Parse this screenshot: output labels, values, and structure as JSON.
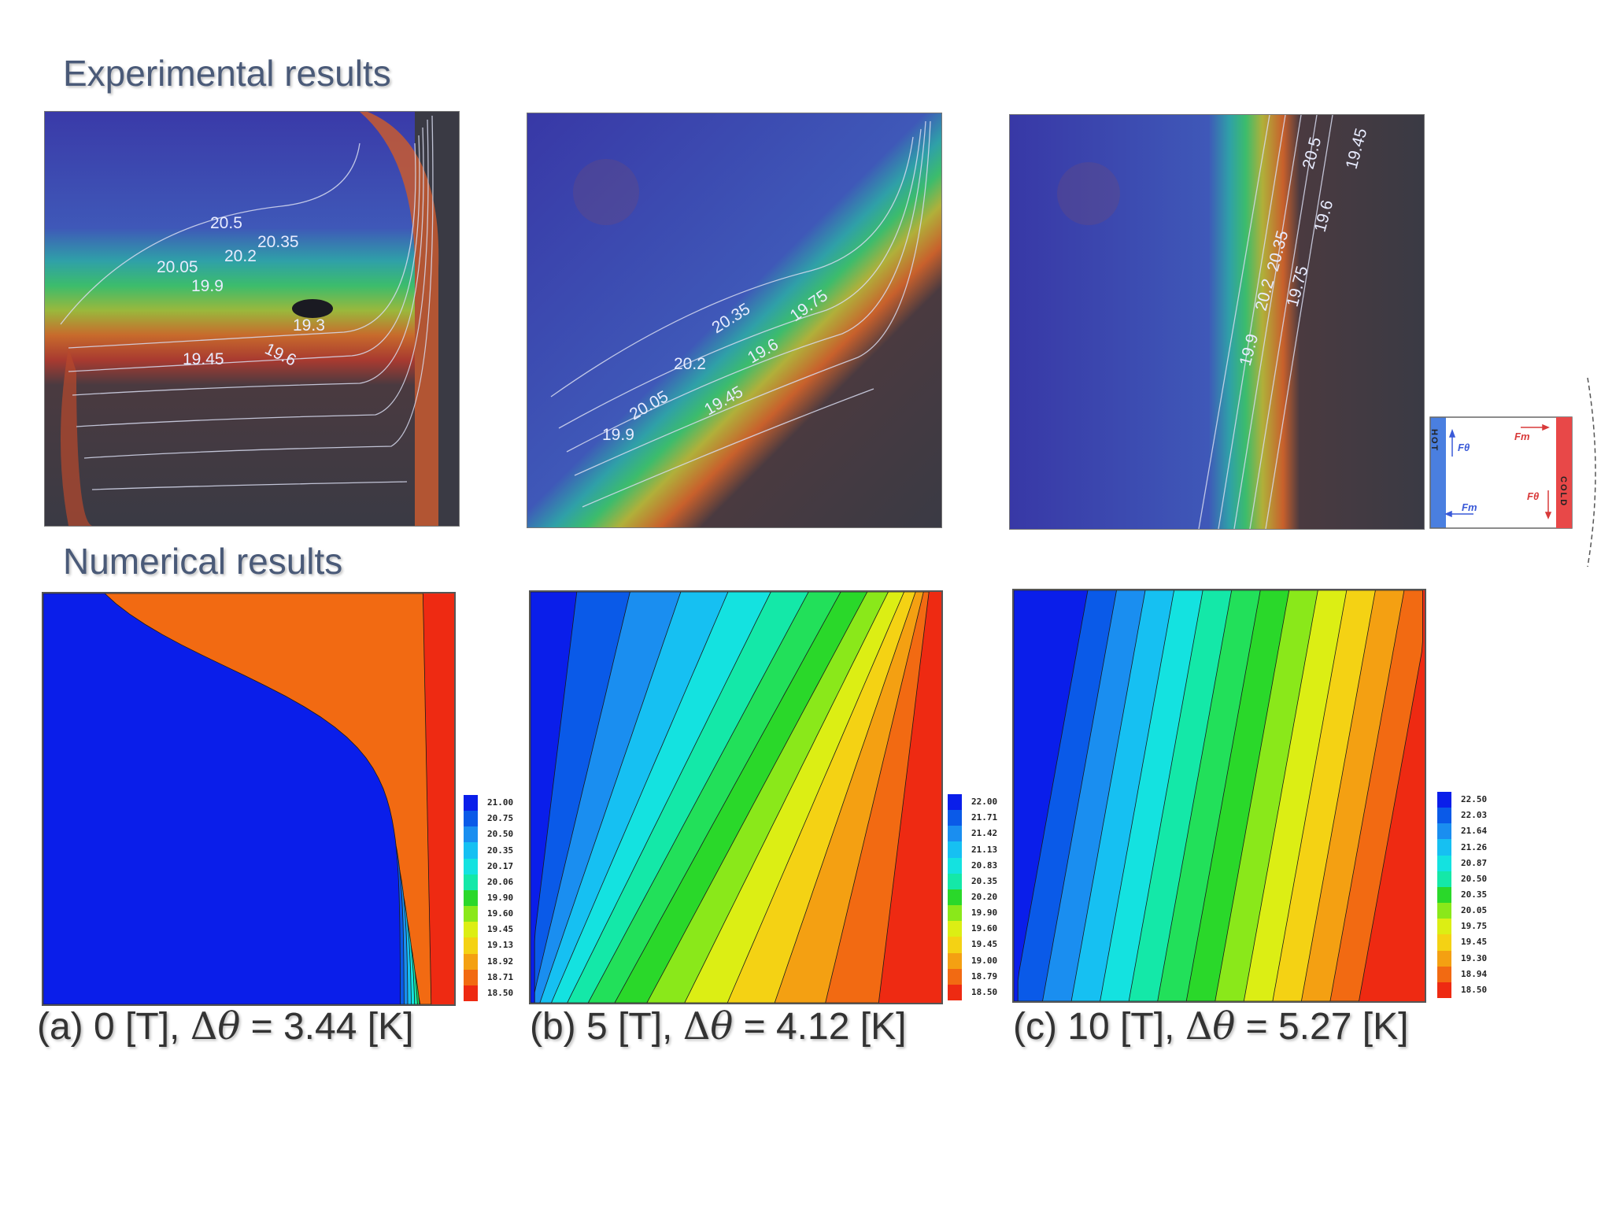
{
  "headings": {
    "experimental": "Experimental results",
    "numerical": "Numerical results"
  },
  "experimental_panels": [
    {
      "id": "a",
      "contour_labels": [
        "20.5",
        "20.35",
        "20.2",
        "20.05",
        "19.9",
        "19.3",
        "19.6",
        "19.45"
      ]
    },
    {
      "id": "b",
      "contour_labels": [
        "20.35",
        "19.75",
        "20.2",
        "19.6",
        "20.05",
        "19.45",
        "19.9"
      ]
    },
    {
      "id": "c",
      "contour_labels": [
        "20.5",
        "19.45",
        "20.35",
        "19.6",
        "20.2",
        "19.75",
        "19.9"
      ]
    }
  ],
  "schematic": {
    "hot_label": "HOT",
    "cold_label": "COLD",
    "force_labels": [
      "Fθ",
      "Fm",
      "Fθ",
      "Fm"
    ],
    "colors": {
      "hot": "#4a7fe0",
      "cold": "#e84848"
    }
  },
  "numerical_panels": [
    {
      "id": "a",
      "legend": [
        "21.00",
        "20.75",
        "20.50",
        "20.35",
        "20.17",
        "20.06",
        "19.90",
        "19.60",
        "19.45",
        "19.13",
        "18.92",
        "18.71",
        "18.50"
      ],
      "caption": {
        "prefix": "(a) 0 [T], ",
        "delta": "Δ",
        "theta": "θ",
        "suffix": " = 3.44 [K]"
      }
    },
    {
      "id": "b",
      "legend": [
        "22.00",
        "21.71",
        "21.42",
        "21.13",
        "20.83",
        "20.35",
        "20.20",
        "19.90",
        "19.60",
        "19.45",
        "19.00",
        "18.79",
        "18.50"
      ],
      "caption": {
        "prefix": "(b) 5 [T], ",
        "delta": "Δ",
        "theta": "θ",
        "suffix": " = 4.12 [K]"
      }
    },
    {
      "id": "c",
      "legend": [
        "22.50",
        "22.03",
        "21.64",
        "21.26",
        "20.87",
        "20.50",
        "20.35",
        "20.05",
        "19.75",
        "19.45",
        "19.30",
        "18.94",
        "18.50"
      ],
      "caption": {
        "prefix": "(c) 10 [T], ",
        "delta": "Δ",
        "theta": "θ",
        "suffix": " = 5.27 [K]"
      }
    }
  ],
  "colormap": [
    "#0a1eea",
    "#0a5ae8",
    "#1a8ef0",
    "#16c0f2",
    "#14e2e0",
    "#14e8a8",
    "#22e05a",
    "#2ad82a",
    "#8ae81a",
    "#dcee14",
    "#f4d214",
    "#f4a012",
    "#f26a12",
    "#ee2a12"
  ]
}
